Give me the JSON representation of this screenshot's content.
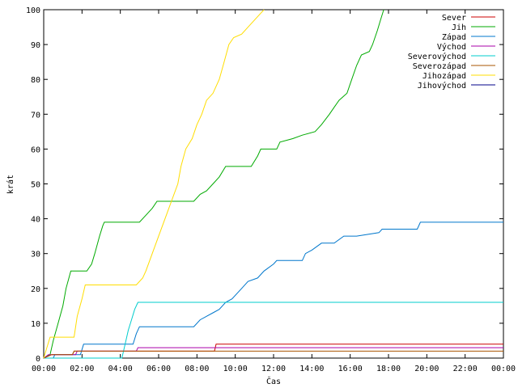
{
  "chart_data": {
    "type": "line",
    "xlabel": "Čas",
    "ylabel": "krát",
    "xlim": [
      "00:00",
      "24:00"
    ],
    "ylim": [
      0,
      100
    ],
    "xticks": [
      "00:00",
      "02:00",
      "04:00",
      "06:00",
      "08:00",
      "10:00",
      "12:00",
      "14:00",
      "16:00",
      "18:00",
      "20:00",
      "22:00",
      "00:00"
    ],
    "yticks": [
      0,
      10,
      20,
      30,
      40,
      50,
      60,
      70,
      80,
      90,
      100
    ],
    "grid": false,
    "legend_position": "top-right",
    "series": [
      {
        "name": "Sever",
        "color": "#cc0000",
        "points": [
          [
            "00:00",
            0
          ],
          [
            "00:25",
            1
          ],
          [
            "01:30",
            1
          ],
          [
            "01:35",
            2
          ],
          [
            "04:55",
            2
          ],
          [
            "04:58",
            2
          ],
          [
            "08:55",
            2
          ],
          [
            "09:00",
            4
          ],
          [
            "24:00",
            4
          ]
        ]
      },
      {
        "name": "Jih",
        "color": "#00aa00",
        "points": [
          [
            "00:00",
            0
          ],
          [
            "00:20",
            1
          ],
          [
            "00:30",
            5
          ],
          [
            "00:45",
            10
          ],
          [
            "01:00",
            15
          ],
          [
            "01:10",
            20
          ],
          [
            "01:25",
            25
          ],
          [
            "02:15",
            25
          ],
          [
            "02:30",
            27
          ],
          [
            "02:40",
            30
          ],
          [
            "02:55",
            35
          ],
          [
            "03:05",
            38
          ],
          [
            "03:10",
            39
          ],
          [
            "05:00",
            39
          ],
          [
            "05:20",
            41
          ],
          [
            "05:40",
            43
          ],
          [
            "05:55",
            45
          ],
          [
            "07:50",
            45
          ],
          [
            "08:10",
            47
          ],
          [
            "08:30",
            48
          ],
          [
            "08:50",
            50
          ],
          [
            "09:10",
            52
          ],
          [
            "09:30",
            55
          ],
          [
            "10:50",
            55
          ],
          [
            "11:10",
            58
          ],
          [
            "11:20",
            60
          ],
          [
            "12:10",
            60
          ],
          [
            "12:20",
            62
          ],
          [
            "13:00",
            63
          ],
          [
            "13:30",
            64
          ],
          [
            "14:10",
            65
          ],
          [
            "14:30",
            67
          ],
          [
            "14:55",
            70
          ],
          [
            "15:10",
            72
          ],
          [
            "15:25",
            74
          ],
          [
            "15:50",
            76
          ],
          [
            "16:05",
            80
          ],
          [
            "16:20",
            84
          ],
          [
            "16:35",
            87
          ],
          [
            "17:00",
            88
          ],
          [
            "17:10",
            90
          ],
          [
            "17:25",
            94
          ],
          [
            "17:35",
            97
          ],
          [
            "17:45",
            100
          ]
        ]
      },
      {
        "name": "Západ",
        "color": "#0077cc",
        "points": [
          [
            "00:00",
            0
          ],
          [
            "00:30",
            0
          ],
          [
            "00:35",
            1
          ],
          [
            "01:55",
            1
          ],
          [
            "02:05",
            4
          ],
          [
            "04:40",
            4
          ],
          [
            "04:50",
            7
          ],
          [
            "05:00",
            9
          ],
          [
            "07:50",
            9
          ],
          [
            "08:10",
            11
          ],
          [
            "08:50",
            13
          ],
          [
            "09:10",
            14
          ],
          [
            "09:30",
            16
          ],
          [
            "09:50",
            17
          ],
          [
            "10:20",
            20
          ],
          [
            "10:40",
            22
          ],
          [
            "11:10",
            23
          ],
          [
            "11:30",
            25
          ],
          [
            "12:00",
            27
          ],
          [
            "12:10",
            28
          ],
          [
            "13:30",
            28
          ],
          [
            "13:40",
            30
          ],
          [
            "14:00",
            31
          ],
          [
            "14:30",
            33
          ],
          [
            "15:10",
            33
          ],
          [
            "15:40",
            35
          ],
          [
            "16:20",
            35
          ],
          [
            "17:30",
            36
          ],
          [
            "17:40",
            37
          ],
          [
            "19:30",
            37
          ],
          [
            "19:40",
            39
          ],
          [
            "24:00",
            39
          ]
        ]
      },
      {
        "name": "Východ",
        "color": "#aa00aa",
        "points": [
          [
            "00:00",
            0
          ],
          [
            "00:15",
            1
          ],
          [
            "01:40",
            1
          ],
          [
            "01:45",
            2
          ],
          [
            "04:50",
            2
          ],
          [
            "04:55",
            3
          ],
          [
            "09:00",
            3
          ],
          [
            "24:00",
            3
          ]
        ]
      },
      {
        "name": "Severovýchod",
        "color": "#00cccc",
        "points": [
          [
            "00:00",
            0
          ],
          [
            "04:05",
            0
          ],
          [
            "04:15",
            4
          ],
          [
            "04:25",
            8
          ],
          [
            "04:35",
            11
          ],
          [
            "04:45",
            14
          ],
          [
            "04:55",
            16
          ],
          [
            "24:00",
            16
          ]
        ]
      },
      {
        "name": "Severozápad",
        "color": "#aa5500",
        "points": [
          [
            "00:00",
            0
          ],
          [
            "00:25",
            1
          ],
          [
            "01:30",
            1
          ],
          [
            "01:35",
            2
          ],
          [
            "24:00",
            2
          ]
        ]
      },
      {
        "name": "Jihozápad",
        "color": "#ffdd00",
        "points": [
          [
            "00:00",
            0
          ],
          [
            "00:10",
            3
          ],
          [
            "00:20",
            6
          ],
          [
            "01:35",
            6
          ],
          [
            "01:45",
            12
          ],
          [
            "02:00",
            17
          ],
          [
            "02:10",
            21
          ],
          [
            "04:10",
            21
          ],
          [
            "04:50",
            21
          ],
          [
            "05:10",
            23
          ],
          [
            "05:20",
            25
          ],
          [
            "05:40",
            30
          ],
          [
            "06:00",
            35
          ],
          [
            "06:20",
            40
          ],
          [
            "06:40",
            45
          ],
          [
            "07:00",
            50
          ],
          [
            "07:10",
            55
          ],
          [
            "07:25",
            60
          ],
          [
            "07:45",
            63
          ],
          [
            "08:00",
            67
          ],
          [
            "08:15",
            70
          ],
          [
            "08:30",
            74
          ],
          [
            "08:50",
            76
          ],
          [
            "09:10",
            80
          ],
          [
            "09:25",
            85
          ],
          [
            "09:40",
            90
          ],
          [
            "09:55",
            92
          ],
          [
            "10:20",
            93
          ],
          [
            "10:40",
            95
          ],
          [
            "11:00",
            97
          ],
          [
            "11:20",
            99
          ],
          [
            "11:30",
            100
          ]
        ]
      },
      {
        "name": "Jihovýchod",
        "color": "#000088",
        "points": []
      }
    ]
  }
}
